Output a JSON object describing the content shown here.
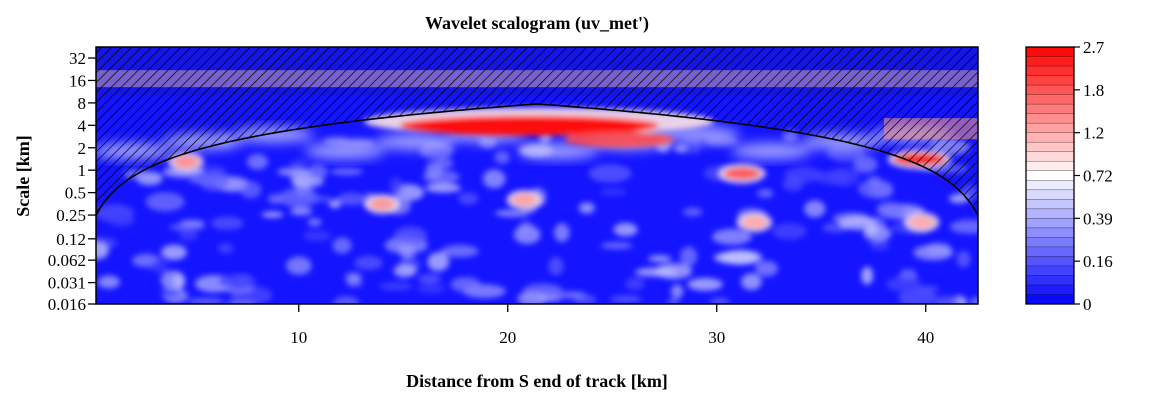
{
  "chart_data": {
    "type": "heatmap",
    "title": "Wavelet scalogram (uv_met')",
    "xlabel": "Distance from S end of track [km]",
    "ylabel": "Scale [km]",
    "x_ticks": [
      "10",
      "20",
      "30",
      "40"
    ],
    "x_tick_values": [
      10,
      20,
      30,
      40
    ],
    "xlim": [
      0.3,
      42.5
    ],
    "y_ticks": [
      "32",
      "16",
      "8",
      "4",
      "2",
      "1",
      "0.5",
      "0.25",
      "0.12",
      "0.062",
      "0.031",
      "0.016"
    ],
    "y_tick_values": [
      32,
      16,
      8,
      4,
      2,
      1,
      0.5,
      0.25,
      0.12,
      0.062,
      0.031,
      0.016
    ],
    "ylim": [
      0.016,
      45
    ],
    "y_scale": "log2",
    "colorbar": {
      "ticks": [
        "2.7",
        "1.8",
        "1.2",
        "0.72",
        "0.39",
        "0.16",
        "0"
      ],
      "colors": [
        "#0000ff",
        "#ffffff",
        "#ff0000"
      ],
      "levels": 27
    },
    "hotspots": [
      {
        "x": 21.5,
        "scale": 4.5,
        "power": 2.7
      },
      {
        "x": 39.7,
        "scale": 1.4,
        "power": 2.4
      },
      {
        "x": 31.2,
        "scale": 0.9,
        "power": 1.8
      },
      {
        "x": 4.6,
        "scale": 1.3,
        "power": 1.2
      },
      {
        "x": 14.0,
        "scale": 0.35,
        "power": 1.1
      },
      {
        "x": 20.8,
        "scale": 0.4,
        "power": 1.0
      },
      {
        "x": 31.8,
        "scale": 0.2,
        "power": 0.9
      },
      {
        "x": 39.8,
        "scale": 0.2,
        "power": 0.9
      }
    ],
    "cone_of_influence": {
      "edge_scale": 0.25,
      "peak_x": 21.5,
      "peak_scale": 16
    },
    "hatch": "cone-of-influence"
  }
}
